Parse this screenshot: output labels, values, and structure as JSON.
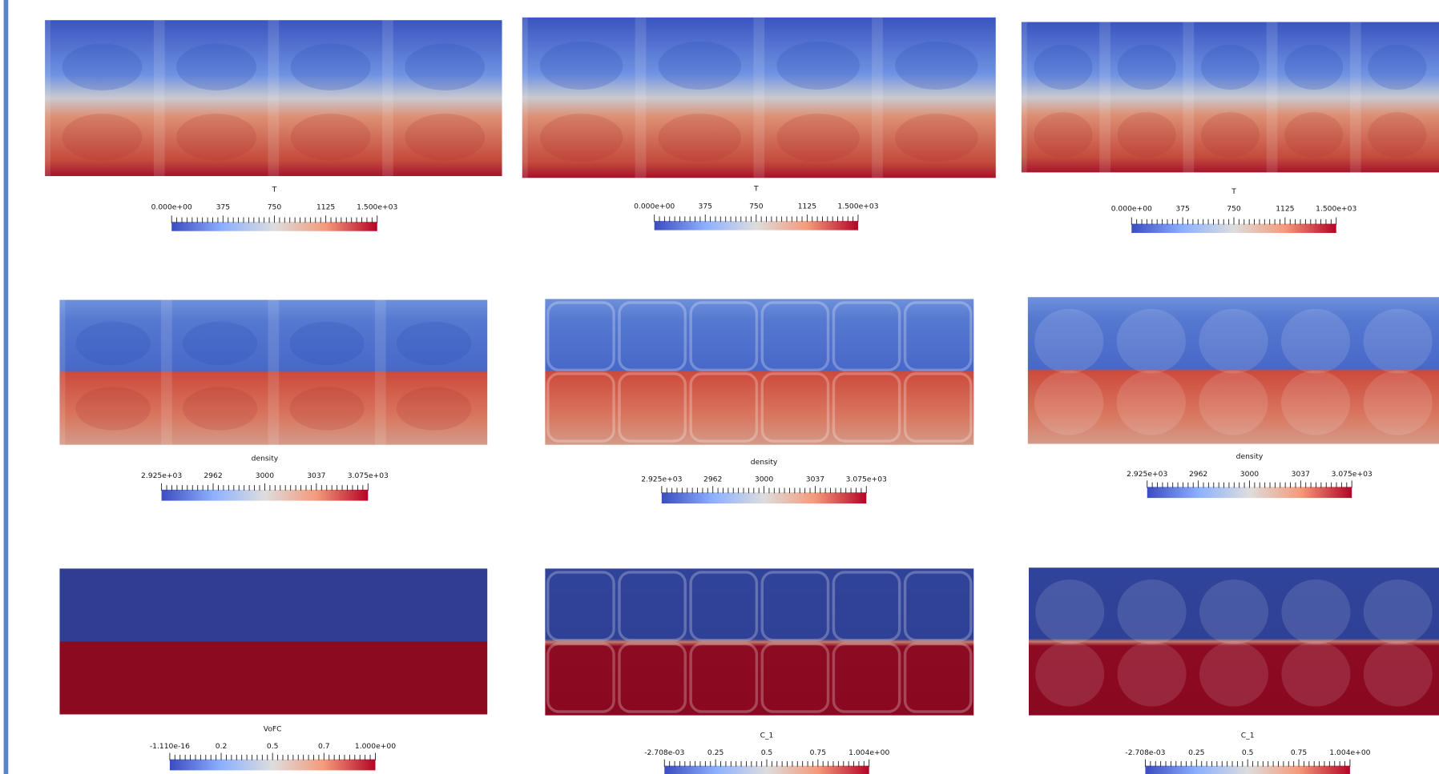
{
  "panels": [
    {
      "field": "T",
      "ticks": [
        "0.000e+00",
        "375",
        "750",
        "1125",
        "1.500e+03"
      ]
    },
    {
      "field": "T",
      "ticks": [
        "0.000e+00",
        "375",
        "750",
        "1125",
        "1.500e+03"
      ]
    },
    {
      "field": "T",
      "ticks": [
        "0.000e+00",
        "375",
        "750",
        "1125",
        "1.500e+03"
      ]
    },
    {
      "field": "density",
      "ticks": [
        "2.925e+03",
        "2962",
        "3000",
        "3037",
        "3.075e+03"
      ]
    },
    {
      "field": "density",
      "ticks": [
        "2.925e+03",
        "2962",
        "3000",
        "3037",
        "3.075e+03"
      ]
    },
    {
      "field": "density",
      "ticks": [
        "2.925e+03",
        "2962",
        "3000",
        "3037",
        "3.075e+03"
      ]
    },
    {
      "field": "VoFC",
      "ticks": [
        "-1.110e-16",
        "0.2",
        "0.5",
        "0.7",
        "1.000e+00"
      ]
    },
    {
      "field": "C_1",
      "ticks": [
        "-2.708e-03",
        "0.25",
        "0.5",
        "0.75",
        "1.004e+00"
      ]
    },
    {
      "field": "C_1",
      "ticks": [
        "-2.708e-03",
        "0.25",
        "0.5",
        "0.75",
        "1.004e+00"
      ]
    }
  ]
}
